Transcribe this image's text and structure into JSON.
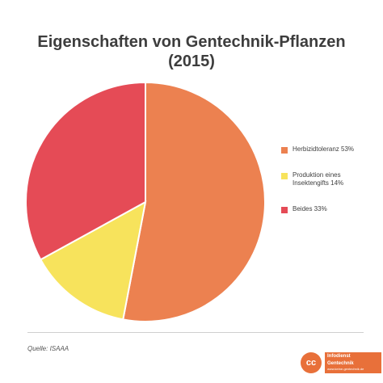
{
  "chart_data": {
    "type": "pie",
    "title_lines": [
      "Eigenschaften von Gentechnik-Pflanzen",
      "(2015)"
    ],
    "slices": [
      {
        "label": "Herbizidtoleranz 53%",
        "value": 53,
        "color": "#ec8150"
      },
      {
        "label": "Produktion eines Insektengifts  14%",
        "value": 14,
        "color": "#f7e35c"
      },
      {
        "label": "Beides 33%",
        "value": 33,
        "color": "#e54b56"
      }
    ],
    "start_angle_deg": 0,
    "direction": "clockwise",
    "legend_position": "right"
  },
  "footer": {
    "source": "Quelle: ISAAA",
    "brand_badge": "cc",
    "brand_line1": "Infodienst",
    "brand_line2": "Gentechnik",
    "brand_url": "www.keine-gentechnik.de"
  }
}
